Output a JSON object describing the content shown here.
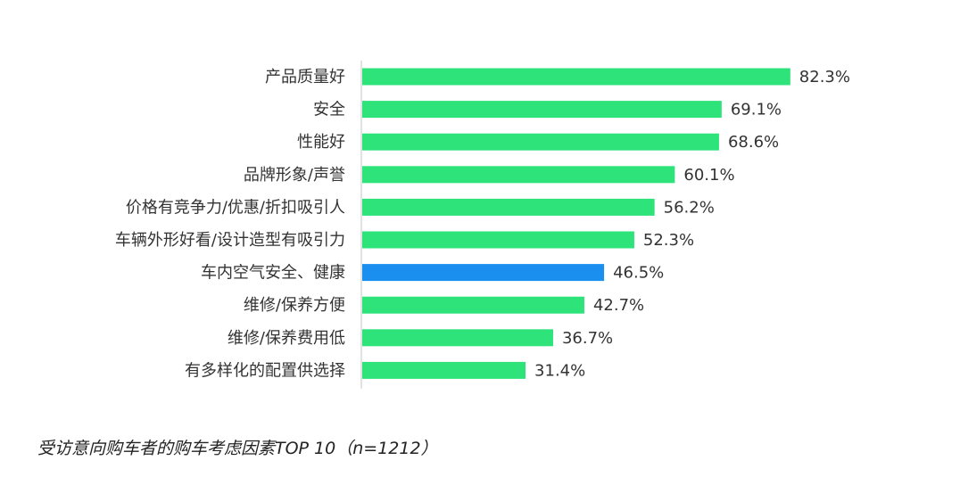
{
  "chart_data": {
    "type": "bar",
    "orientation": "horizontal",
    "categories": [
      "产品质量好",
      "安全",
      "性能好",
      "品牌形象/声誉",
      "价格有竞争力/优惠/折扣吸引人",
      "车辆外形好看/设计造型有吸引力",
      "车内空气安全、健康",
      "维修/保养方便",
      "维修/保养费用低",
      "有多样化的配置供选择"
    ],
    "values": [
      82.3,
      69.1,
      68.6,
      60.1,
      56.2,
      52.3,
      46.5,
      42.7,
      36.7,
      31.4
    ],
    "value_labels": [
      "82.3%",
      "69.1%",
      "68.6%",
      "60.1%",
      "56.2%",
      "52.3%",
      "46.5%",
      "42.7%",
      "36.7%",
      "31.4%"
    ],
    "highlight_index": 6,
    "colors": {
      "bar": "#2ee47a",
      "highlight": "#1a8ff0",
      "axis": "#d9d9d9"
    },
    "xlim": [
      0,
      100
    ],
    "grid": false,
    "legend": false
  },
  "caption": "受访意向购车者的购车考虑因素TOP 10（n=1212）"
}
